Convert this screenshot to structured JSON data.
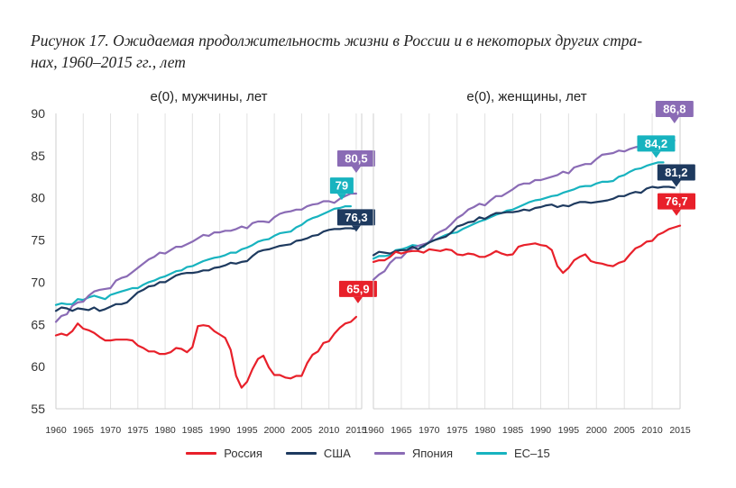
{
  "figure": {
    "title_line1": "Рисунок 17. Ожидаемая продолжительность жизни в России и в некоторых других стра-",
    "title_line2": "нах, 1960–2015 гг., лет"
  },
  "colors": {
    "Россия": "#e8202a",
    "США": "#1e3a5f",
    "Япония": "#8a6bb5",
    "ЕС–15": "#17b3bf"
  },
  "legend": [
    {
      "name": "Россия"
    },
    {
      "name": "США"
    },
    {
      "name": "Япония"
    },
    {
      "name": "ЕС–15"
    }
  ],
  "chart_data": [
    {
      "type": "line",
      "title": "e(0), мужчины, лет",
      "xlabel": "",
      "ylabel": "",
      "xlim": [
        1960,
        2016
      ],
      "ylim": [
        55,
        90
      ],
      "y_ticks": [
        "55",
        "60",
        "65",
        "70",
        "75",
        "80",
        "85",
        "90"
      ],
      "x_ticks": [
        "1960",
        "1965",
        "1970",
        "1975",
        "1980",
        "1985",
        "1990",
        "1995",
        "2000",
        "2005",
        "2010",
        "2015"
      ],
      "grid": "vertical",
      "series": [
        {
          "name": "Россия",
          "x_start": 1960,
          "values": [
            63.7,
            63.9,
            63.7,
            64.2,
            65.1,
            64.5,
            64.3,
            64.0,
            63.5,
            63.1,
            63.1,
            63.2,
            63.2,
            63.2,
            63.1,
            62.5,
            62.2,
            61.8,
            61.8,
            61.5,
            61.5,
            61.7,
            62.2,
            62.1,
            61.7,
            62.3,
            64.8,
            64.9,
            64.8,
            64.2,
            63.8,
            63.4,
            62.0,
            58.9,
            57.5,
            58.2,
            59.7,
            60.9,
            61.3,
            59.9,
            59.0,
            59.0,
            58.7,
            58.6,
            58.9,
            58.9,
            60.4,
            61.4,
            61.8,
            62.8,
            63.0,
            63.9,
            64.6,
            65.1,
            65.3,
            65.9
          ],
          "end_label": "65,9"
        },
        {
          "name": "США",
          "x_start": 1960,
          "values": [
            66.6,
            67.0,
            66.9,
            66.6,
            66.9,
            66.8,
            66.7,
            67.0,
            66.6,
            66.8,
            67.1,
            67.4,
            67.4,
            67.6,
            68.2,
            68.8,
            69.1,
            69.5,
            69.6,
            70.0,
            70.0,
            70.4,
            70.8,
            71.0,
            71.1,
            71.1,
            71.2,
            71.4,
            71.4,
            71.7,
            71.8,
            72.0,
            72.3,
            72.2,
            72.4,
            72.5,
            73.1,
            73.6,
            73.8,
            73.9,
            74.1,
            74.3,
            74.4,
            74.5,
            74.9,
            75.0,
            75.2,
            75.5,
            75.6,
            76.0,
            76.2,
            76.3,
            76.3,
            76.4,
            76.4,
            76.3
          ],
          "end_label": "76,3"
        },
        {
          "name": "Япония",
          "x_start": 1960,
          "values": [
            65.3,
            66.0,
            66.2,
            67.2,
            67.6,
            67.7,
            68.4,
            68.9,
            69.1,
            69.2,
            69.3,
            70.2,
            70.5,
            70.7,
            71.2,
            71.7,
            72.2,
            72.7,
            73.0,
            73.5,
            73.4,
            73.8,
            74.2,
            74.2,
            74.5,
            74.8,
            75.2,
            75.6,
            75.5,
            75.9,
            75.9,
            76.1,
            76.1,
            76.3,
            76.6,
            76.4,
            77.0,
            77.2,
            77.2,
            77.1,
            77.7,
            78.1,
            78.3,
            78.4,
            78.6,
            78.6,
            79.0,
            79.2,
            79.3,
            79.6,
            79.6,
            79.4,
            79.9,
            80.2,
            80.5,
            80.5
          ],
          "end_label": "80,5"
        },
        {
          "name": "ЕС–15",
          "x_start": 1960,
          "values": [
            67.3,
            67.5,
            67.4,
            67.4,
            68.0,
            67.9,
            68.2,
            68.4,
            68.2,
            68.0,
            68.5,
            68.7,
            68.9,
            69.1,
            69.3,
            69.3,
            69.7,
            70.0,
            70.2,
            70.5,
            70.7,
            71.0,
            71.3,
            71.4,
            71.8,
            71.9,
            72.2,
            72.5,
            72.7,
            72.9,
            73.0,
            73.2,
            73.5,
            73.5,
            73.9,
            74.1,
            74.4,
            74.8,
            75.0,
            75.1,
            75.5,
            75.8,
            75.9,
            76.0,
            76.5,
            76.8,
            77.3,
            77.6,
            77.8,
            78.1,
            78.4,
            78.7,
            78.8,
            79.0,
            79.0
          ],
          "end_label": "79"
        }
      ]
    },
    {
      "type": "line",
      "title": "e(0), женщины, лет",
      "xlabel": "",
      "ylabel": "",
      "xlim": [
        1960,
        2015
      ],
      "ylim": [
        55,
        90
      ],
      "y_ticks": [
        "55",
        "60",
        "65",
        "70",
        "75",
        "80",
        "85",
        "90"
      ],
      "x_ticks": [
        "1960",
        "1965",
        "1970",
        "1975",
        "1980",
        "1985",
        "1990",
        "1995",
        "2000",
        "2005",
        "2010",
        "2015"
      ],
      "grid": "vertical",
      "series": [
        {
          "name": "Россия",
          "x_start": 1960,
          "values": [
            72.4,
            72.6,
            72.6,
            73.0,
            73.6,
            73.4,
            73.6,
            73.7,
            73.7,
            73.5,
            73.9,
            73.8,
            73.7,
            73.9,
            73.8,
            73.3,
            73.2,
            73.4,
            73.3,
            73.0,
            73.0,
            73.3,
            73.7,
            73.4,
            73.2,
            73.3,
            74.2,
            74.4,
            74.5,
            74.6,
            74.4,
            74.3,
            73.8,
            71.9,
            71.1,
            71.7,
            72.6,
            73.0,
            73.3,
            72.5,
            72.3,
            72.2,
            72.0,
            71.9,
            72.3,
            72.5,
            73.3,
            74.0,
            74.3,
            74.8,
            74.9,
            75.6,
            75.9,
            76.3,
            76.5,
            76.7
          ],
          "end_label": "76,7"
        },
        {
          "name": "США",
          "x_start": 1960,
          "values": [
            73.2,
            73.6,
            73.5,
            73.4,
            73.7,
            73.8,
            73.8,
            74.2,
            73.9,
            74.3,
            74.7,
            75.0,
            75.2,
            75.4,
            75.9,
            76.6,
            76.8,
            77.1,
            77.2,
            77.7,
            77.5,
            77.9,
            78.2,
            78.2,
            78.3,
            78.3,
            78.4,
            78.6,
            78.5,
            78.8,
            78.9,
            79.1,
            79.2,
            78.9,
            79.1,
            79.0,
            79.3,
            79.5,
            79.5,
            79.4,
            79.5,
            79.6,
            79.7,
            79.9,
            80.2,
            80.2,
            80.5,
            80.7,
            80.6,
            81.1,
            81.3,
            81.2,
            81.3,
            81.3,
            81.2
          ],
          "end_label": "81,2"
        },
        {
          "name": "Япония",
          "x_start": 1960,
          "values": [
            70.3,
            70.9,
            71.3,
            72.3,
            72.9,
            72.9,
            73.6,
            74.0,
            74.3,
            74.5,
            74.7,
            75.6,
            76.0,
            76.3,
            76.9,
            77.6,
            78.0,
            78.6,
            78.9,
            79.3,
            79.1,
            79.7,
            80.2,
            80.2,
            80.6,
            81.0,
            81.5,
            81.7,
            81.7,
            82.1,
            82.1,
            82.3,
            82.5,
            82.7,
            83.1,
            82.9,
            83.6,
            83.8,
            84.0,
            84.0,
            84.6,
            85.1,
            85.2,
            85.3,
            85.6,
            85.5,
            85.8,
            86.0,
            86.1,
            86.4,
            86.5,
            86.2,
            86.6,
            86.8,
            86.8
          ],
          "end_label": "86,8"
        },
        {
          "name": "ЕС–15",
          "x_start": 1960,
          "values": [
            72.8,
            73.1,
            73.1,
            73.2,
            73.8,
            73.9,
            74.1,
            74.4,
            74.3,
            74.2,
            74.8,
            75.0,
            75.3,
            75.6,
            75.8,
            75.9,
            76.3,
            76.6,
            76.9,
            77.2,
            77.4,
            77.7,
            78.0,
            78.2,
            78.5,
            78.6,
            78.9,
            79.2,
            79.5,
            79.7,
            79.8,
            80.0,
            80.2,
            80.3,
            80.6,
            80.8,
            81.0,
            81.3,
            81.4,
            81.4,
            81.7,
            81.9,
            81.9,
            82.0,
            82.5,
            82.7,
            83.1,
            83.4,
            83.5,
            83.8,
            84.0,
            84.2,
            84.2
          ],
          "end_label": "84,2"
        }
      ]
    }
  ]
}
